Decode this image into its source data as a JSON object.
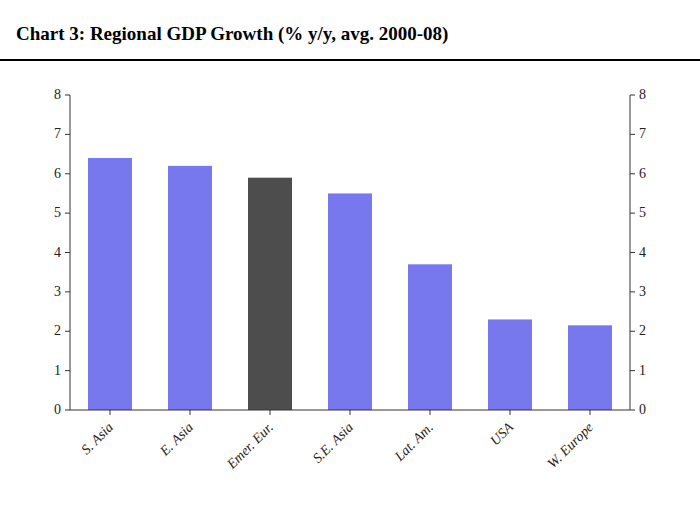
{
  "chart_data": {
    "type": "bar",
    "title": "Chart 3: Regional GDP Growth (% y/y, avg. 2000-08)",
    "categories": [
      "S. Asia",
      "E. Asia",
      "Emer. Eur.",
      "S.E. Asia",
      "Lat. Am.",
      "USA",
      "W. Europe"
    ],
    "values": [
      6.4,
      6.2,
      5.9,
      5.5,
      3.7,
      2.3,
      2.15
    ],
    "colors": [
      "#7777ee",
      "#7777ee",
      "#4d4d4d",
      "#7777ee",
      "#7777ee",
      "#7777ee",
      "#7777ee"
    ],
    "ylim": [
      0,
      8
    ],
    "yticks": [
      0,
      1,
      2,
      3,
      4,
      5,
      6,
      7,
      8
    ],
    "y2lim": [
      0,
      8
    ],
    "y2ticks": [
      0,
      1,
      2,
      3,
      4,
      5,
      6,
      7,
      8
    ],
    "grid": false
  }
}
